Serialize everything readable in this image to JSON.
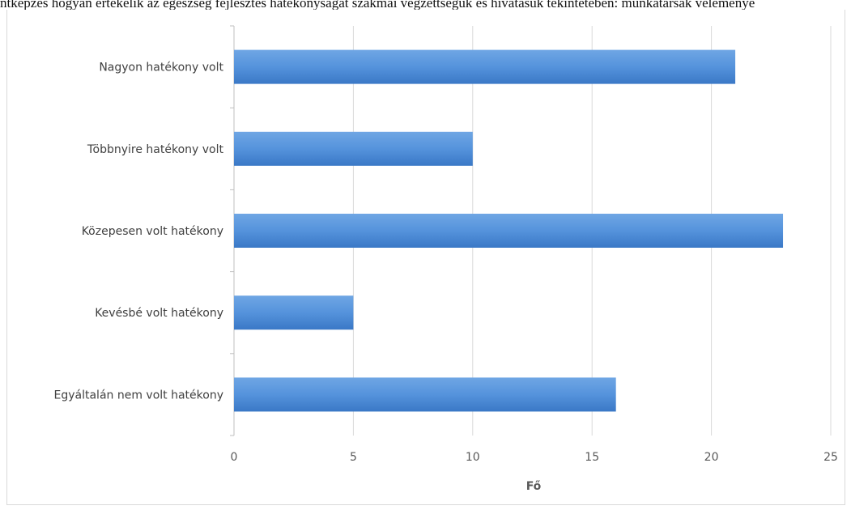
{
  "header_text": "ntképzés hogyan értékelik az egészség fejlesztés hatékonyságát szakmai végzettségük és hivatásuk tekintetében: munkatársak véleménye",
  "colors": {
    "bar": "#4a89d4",
    "bar_light": "#6fa6e4",
    "grid": "#d9d9d9",
    "axis": "#bfbfbf",
    "text": "#595959"
  },
  "chart_data": {
    "type": "bar",
    "orientation": "horizontal",
    "categories": [
      "Nagyon hatékony volt",
      "Többnyire hatékony volt",
      "Közepesen volt hatékony",
      "Kevésbé volt hatékony",
      "Egyáltalán nem volt hatékony"
    ],
    "values": [
      21,
      10,
      23,
      5,
      16
    ],
    "xlabel": "Fő",
    "ylabel": "",
    "xlim": [
      0,
      25
    ],
    "xticks": [
      0,
      5,
      10,
      15,
      20,
      25
    ],
    "grid": true,
    "legend": false
  }
}
